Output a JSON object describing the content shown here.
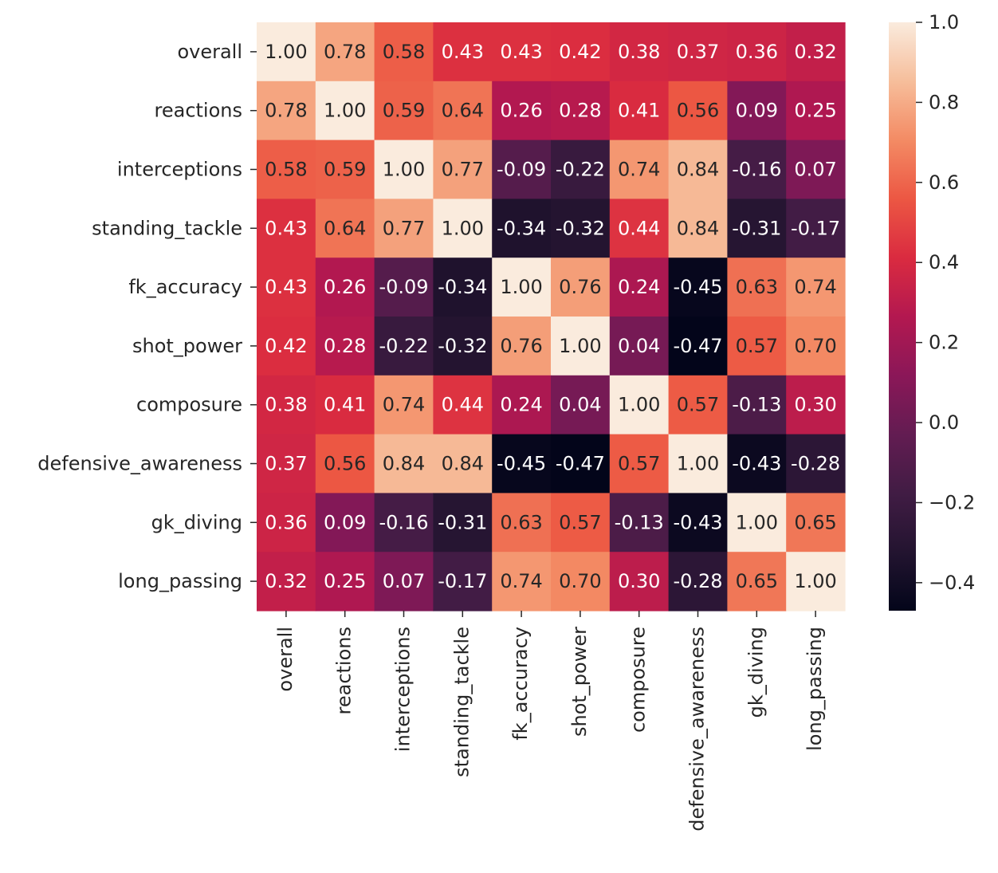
{
  "chart_data": {
    "type": "heatmap",
    "title": "",
    "xlabel": "",
    "ylabel": "",
    "categories": [
      "overall",
      "reactions",
      "interceptions",
      "standing_tackle",
      "fk_accuracy",
      "shot_power",
      "composure",
      "defensive_awareness",
      "gk_diving",
      "long_passing"
    ],
    "values": [
      [
        1.0,
        0.78,
        0.58,
        0.43,
        0.43,
        0.42,
        0.38,
        0.37,
        0.36,
        0.32
      ],
      [
        0.78,
        1.0,
        0.59,
        0.64,
        0.26,
        0.28,
        0.41,
        0.56,
        0.09,
        0.25
      ],
      [
        0.58,
        0.59,
        1.0,
        0.77,
        -0.09,
        -0.22,
        0.74,
        0.84,
        -0.16,
        0.07
      ],
      [
        0.43,
        0.64,
        0.77,
        1.0,
        -0.34,
        -0.32,
        0.44,
        0.84,
        -0.31,
        -0.17
      ],
      [
        0.43,
        0.26,
        -0.09,
        -0.34,
        1.0,
        0.76,
        0.24,
        -0.45,
        0.63,
        0.74
      ],
      [
        0.42,
        0.28,
        -0.22,
        -0.32,
        0.76,
        1.0,
        0.04,
        -0.47,
        0.57,
        0.7
      ],
      [
        0.38,
        0.41,
        0.74,
        0.44,
        0.24,
        0.04,
        1.0,
        0.57,
        -0.13,
        0.3
      ],
      [
        0.37,
        0.56,
        0.84,
        0.84,
        -0.45,
        -0.47,
        0.57,
        1.0,
        -0.43,
        -0.28
      ],
      [
        0.36,
        0.09,
        -0.16,
        -0.31,
        0.63,
        0.57,
        -0.13,
        -0.43,
        1.0,
        0.65
      ],
      [
        0.32,
        0.25,
        0.07,
        -0.17,
        0.74,
        0.7,
        0.3,
        -0.28,
        0.65,
        1.0
      ]
    ],
    "value_format": "2 decimals",
    "colormap": "rocket",
    "color_range": [
      -0.47,
      1.0
    ],
    "colorbar_ticks": [
      "1.0",
      "0.8",
      "0.6",
      "0.4",
      "0.2",
      "0.0",
      "−0.2",
      "−0.4"
    ],
    "colorbar_tick_values": [
      1.0,
      0.8,
      0.6,
      0.4,
      0.2,
      0.0,
      -0.2,
      -0.4
    ],
    "legend": "colorbar right",
    "grid": false,
    "x_tick_rotation": "vertical"
  }
}
